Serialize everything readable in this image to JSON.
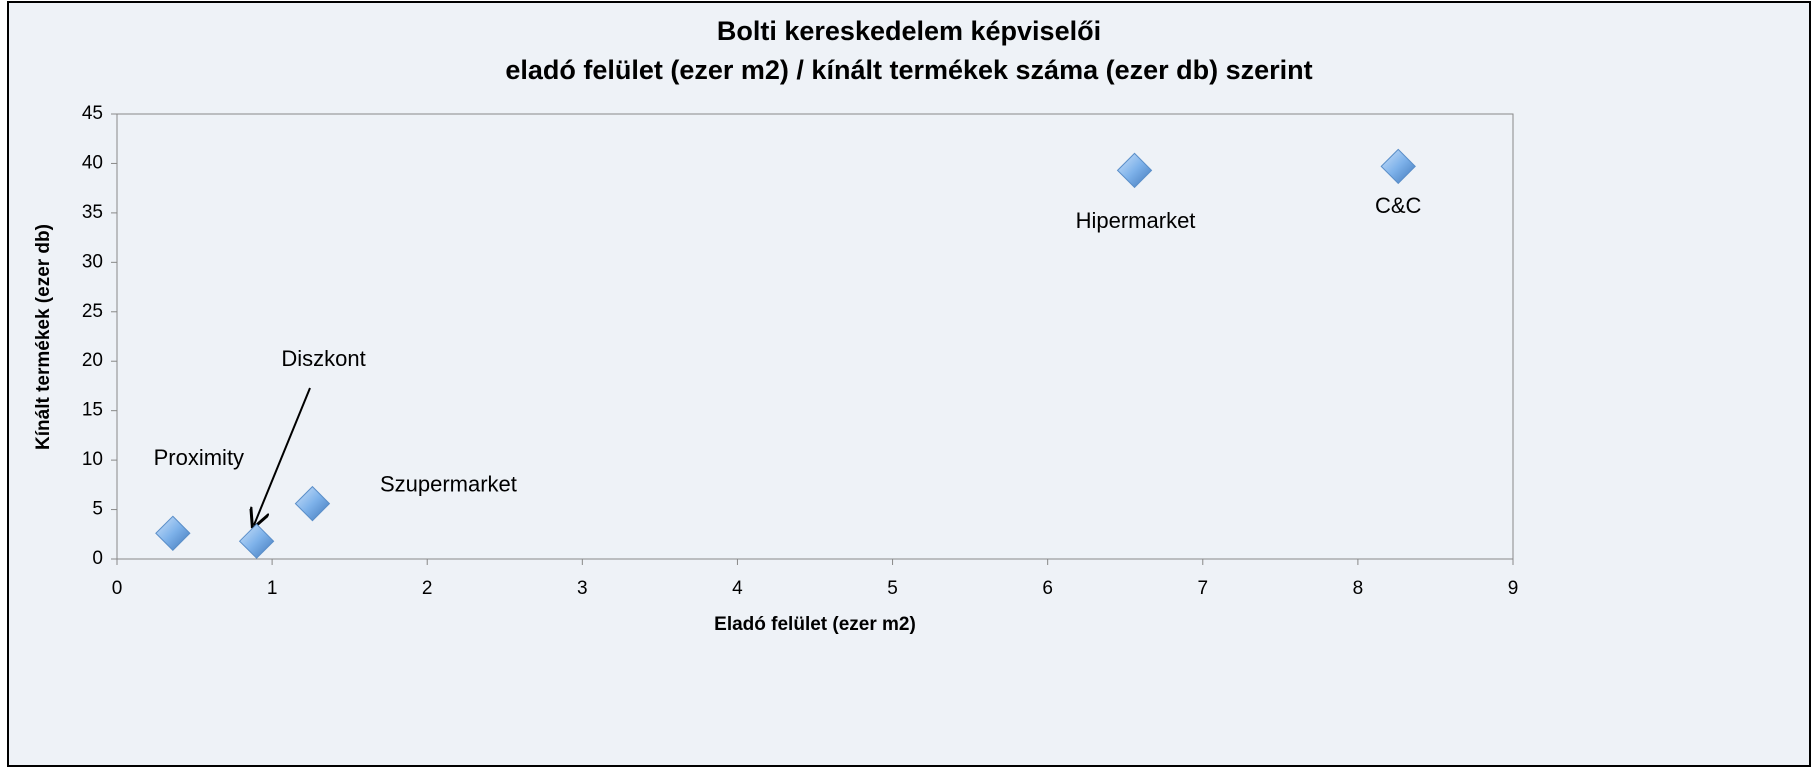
{
  "chart_data": {
    "type": "scatter",
    "title": [
      "Bolti kereskedelem képviselői",
      "eladó felület (ezer m2) / kínált termékek száma (ezer db) szerint"
    ],
    "x_label": "Eladó felület (ezer m2)",
    "y_label": "Kínált termékek (ezer db)",
    "labels": [
      "Proximity",
      "Diszkont",
      "Szupermarket",
      "Hipermarket",
      "C&C"
    ],
    "x": [
      0.36,
      0.9,
      1.26,
      6.56,
      8.26
    ],
    "values": [
      2.6,
      1.8,
      5.6,
      39.3,
      39.7
    ],
    "color": "#6fa8e6",
    "xlim": [
      0,
      9
    ],
    "xticks": [
      0,
      1,
      2,
      3,
      4,
      5,
      6,
      7,
      8,
      9
    ],
    "ylim": [
      0,
      45
    ],
    "yticks": [
      0,
      5,
      10,
      15,
      20,
      25,
      30,
      35,
      40,
      45
    ],
    "grid": false
  }
}
